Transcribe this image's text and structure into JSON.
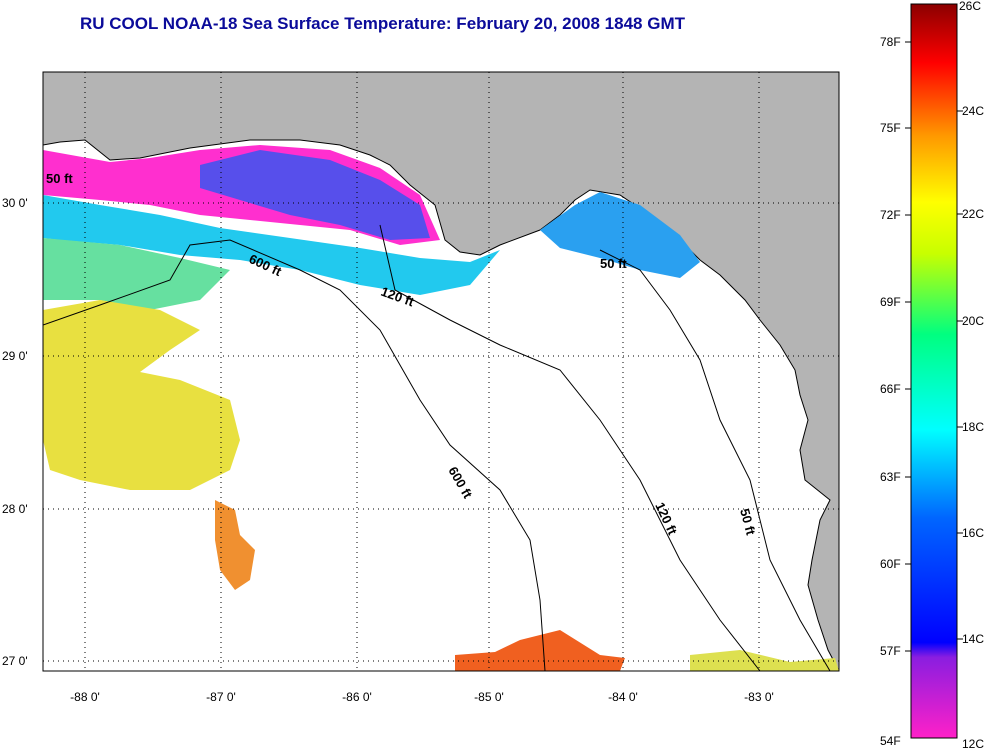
{
  "title": "RU COOL  NOAA-18  Sea Surface Temperature:  February 20, 2008 1848 GMT",
  "lat_ticks": [
    "30 0'",
    "29 0'",
    "28 0'",
    "27 0'"
  ],
  "lon_ticks": [
    "-88 0'",
    "-87 0'",
    "-86 0'",
    "-85 0'",
    "-84 0'",
    "-83 0'"
  ],
  "contour_labels": [
    "50 ft",
    "600 ft",
    "120 ft",
    "50 ft",
    "600 ft",
    "120 ft",
    "50 ft"
  ],
  "colorbar": {
    "f_labels": [
      "78F",
      "75F",
      "72F",
      "69F",
      "66F",
      "63F",
      "60F",
      "57F",
      "54F"
    ],
    "c_labels": [
      "26C",
      "24C",
      "22C",
      "20C",
      "18C",
      "16C",
      "14C",
      "12C"
    ],
    "colors": [
      "#8b0000",
      "#ff0000",
      "#ff8000",
      "#ffff00",
      "#00ff80",
      "#00ffff",
      "#0050ff",
      "#0000ff",
      "#8000c0",
      "#ff20c0"
    ]
  },
  "colors": {
    "land": "#b4b4b4",
    "ocean": "#ffffff",
    "title": "#0b0b9a"
  }
}
